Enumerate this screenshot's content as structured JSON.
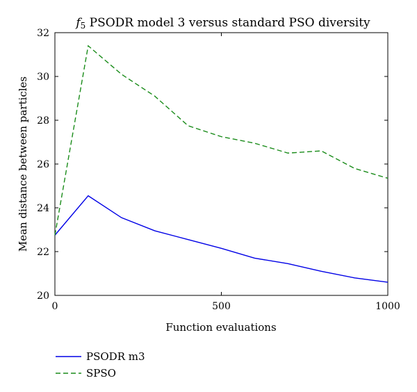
{
  "chart_data": {
    "type": "line",
    "title_italic": "f",
    "title_sub": "5",
    "title_rest": " PSODR model 3 versus standard PSO diversity",
    "xlabel": "Function evaluations",
    "ylabel": "Mean distance between particles",
    "xlim": [
      0,
      1000
    ],
    "ylim": [
      20,
      32
    ],
    "xticks": [
      0,
      500,
      1000
    ],
    "yticks": [
      20,
      22,
      24,
      26,
      28,
      30,
      32
    ],
    "grid": false,
    "legend_position": "bottom-left, below plot",
    "x": [
      0,
      100,
      200,
      300,
      400,
      500,
      600,
      700,
      800,
      900,
      1000
    ],
    "series": [
      {
        "name": "PSODR m3",
        "color": "#0000e6",
        "dash": "solid",
        "values": [
          22.75,
          24.55,
          23.55,
          22.95,
          22.55,
          22.15,
          21.7,
          21.45,
          21.1,
          20.8,
          20.6
        ]
      },
      {
        "name": "SPSO",
        "color": "#1a8c1a",
        "dash": "dashed",
        "values": [
          22.75,
          31.4,
          30.1,
          29.1,
          27.75,
          27.25,
          26.95,
          26.5,
          26.6,
          25.8,
          25.35
        ]
      }
    ]
  }
}
